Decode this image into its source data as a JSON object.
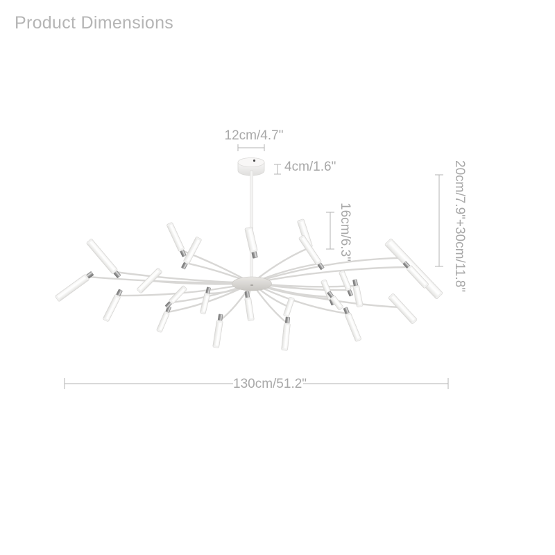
{
  "title": "Product Dimensions",
  "dimensions": {
    "canopy_width": "12cm/4.7\"",
    "canopy_height": "4cm/1.6\"",
    "tube_length": "16cm/6.3\"",
    "drop_height": "20cm/7.9\"+30cm/11.8\"",
    "total_width": "130cm/51.2\""
  },
  "colors": {
    "title": "#b5b5b5",
    "dim_text": "#a8a8a8",
    "dim_line": "#b3b3b3",
    "fixture_fill": "#ffffff",
    "fixture_outline": "#d6d5d3",
    "chrome": "#8f8f8f"
  }
}
